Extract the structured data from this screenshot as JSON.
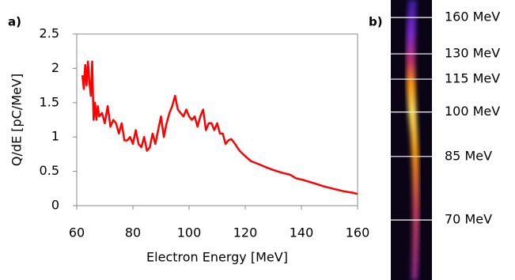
{
  "chart_data": [
    {
      "type": "line",
      "panel_label": "a)",
      "x_label": "Electron Energy [MeV]",
      "y_label": "Q/dE [pC/MeV]",
      "xlim": [
        60,
        160
      ],
      "xticks": [
        60,
        80,
        100,
        120,
        140,
        160
      ],
      "ylim": [
        0,
        2.5
      ],
      "yticks": [
        0,
        0.5,
        1,
        1.5,
        2,
        2.5
      ],
      "color": "#ff0000",
      "frame": true,
      "x": [
        62,
        62.5,
        63,
        63.5,
        64,
        64.5,
        65,
        65.5,
        66,
        66.5,
        67,
        67.5,
        68,
        69,
        70,
        71,
        72,
        73,
        74,
        75,
        76,
        77,
        78,
        79,
        80,
        81,
        82,
        83,
        84,
        85,
        86,
        87,
        88,
        89,
        90,
        91,
        92,
        93,
        94,
        95,
        96,
        97,
        98,
        99,
        100,
        101,
        102,
        103,
        104,
        105,
        106,
        107,
        108,
        109,
        110,
        111,
        112,
        113,
        114,
        115,
        116,
        118,
        120,
        122,
        125,
        128,
        130,
        133,
        136,
        138,
        141,
        145,
        148,
        152,
        155,
        158,
        160
      ],
      "values": [
        1.9,
        1.7,
        2.05,
        1.75,
        2.1,
        1.8,
        1.6,
        2.1,
        1.25,
        1.5,
        1.25,
        1.45,
        1.3,
        1.35,
        1.2,
        1.45,
        1.15,
        1.25,
        1.2,
        1.05,
        1.2,
        0.95,
        0.95,
        1.0,
        0.9,
        1.1,
        0.9,
        0.85,
        1.0,
        0.8,
        0.85,
        1.05,
        0.9,
        1.1,
        1.3,
        1.0,
        1.2,
        1.35,
        1.45,
        1.6,
        1.4,
        1.35,
        1.3,
        1.4,
        1.3,
        1.25,
        1.3,
        1.15,
        1.3,
        1.4,
        1.1,
        1.2,
        1.2,
        1.1,
        1.2,
        1.05,
        1.05,
        0.9,
        0.95,
        0.97,
        0.92,
        0.8,
        0.72,
        0.65,
        0.6,
        0.55,
        0.52,
        0.48,
        0.45,
        0.4,
        0.37,
        0.32,
        0.28,
        0.24,
        0.21,
        0.19,
        0.17
      ]
    },
    {
      "type": "spectrum-image",
      "panel_label": "b)",
      "scale": "reciprocal",
      "ylim": [
        60,
        180
      ],
      "yticks": [
        {
          "value": 160,
          "label": "160 MeV"
        },
        {
          "value": 130,
          "label": "130 MeV"
        },
        {
          "value": 115,
          "label": "115 MeV"
        },
        {
          "value": 100,
          "label": "100 MeV"
        },
        {
          "value": 85,
          "label": "85 MeV"
        },
        {
          "value": 70,
          "label": "70 MeV"
        }
      ]
    }
  ]
}
